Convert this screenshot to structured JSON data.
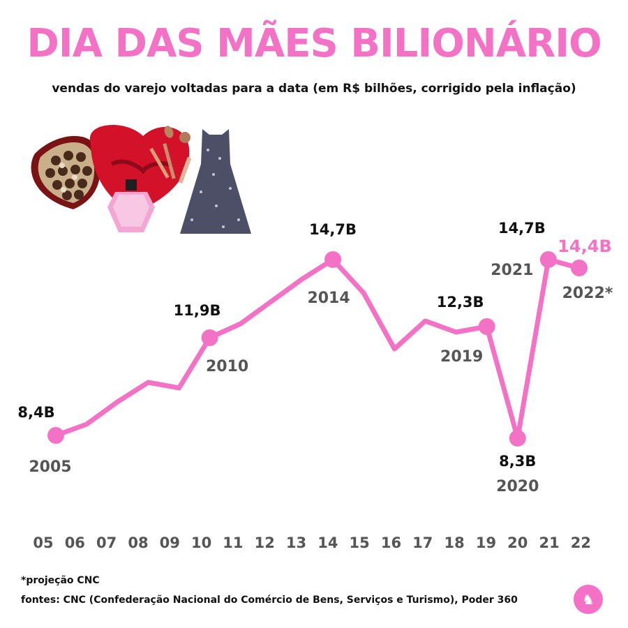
{
  "header": {
    "title": "DIA DAS MÃES BILIONÁRIO",
    "subtitle": "vendas do varejo voltadas para a data (em R$ bilhões, corrigido pela inflação)"
  },
  "illustration": {
    "icons": [
      "chocolate-box-icon",
      "makeup-brushes-icon",
      "perfume-bottle-icon",
      "dress-icon"
    ]
  },
  "chart_data": {
    "type": "line",
    "title": "DIA DAS MÃES BILIONÁRIO",
    "xlabel": "",
    "ylabel": "",
    "categories": [
      "05",
      "06",
      "07",
      "08",
      "09",
      "10",
      "11",
      "12",
      "13",
      "14",
      "15",
      "16",
      "17",
      "18",
      "19",
      "20",
      "21",
      "22"
    ],
    "values": [
      8.4,
      8.8,
      9.6,
      10.3,
      10.1,
      11.9,
      12.4,
      13.2,
      14.0,
      14.7,
      13.5,
      11.5,
      12.5,
      12.1,
      12.3,
      8.3,
      14.7,
      14.4
    ],
    "ylim": [
      7.5,
      15.5
    ],
    "grid": false,
    "legend": "none",
    "line_color": "#f472c6",
    "highlight_color": "#f472c6",
    "annotations": [
      {
        "index": 0,
        "value_label": "8,4B",
        "year_label": "2005",
        "highlight": false
      },
      {
        "index": 5,
        "value_label": "11,9B",
        "year_label": "2010",
        "highlight": false
      },
      {
        "index": 9,
        "value_label": "14,7B",
        "year_label": "2014",
        "highlight": false
      },
      {
        "index": 14,
        "value_label": "12,3B",
        "year_label": "2019",
        "highlight": false
      },
      {
        "index": 15,
        "value_label": "8,3B",
        "year_label": "2020",
        "highlight": false
      },
      {
        "index": 16,
        "value_label": "14,7B",
        "year_label": "2021",
        "highlight": false
      },
      {
        "index": 17,
        "value_label": "14,4B",
        "year_label": "2022*",
        "highlight": true
      }
    ]
  },
  "footer": {
    "footnote": "*projeção CNC",
    "sources": "fontes: CNC (Confederação Nacional do Comércio de Bens, Serviços e Turismo), Poder 360",
    "logo_icon": "unicorn-logo-icon"
  }
}
